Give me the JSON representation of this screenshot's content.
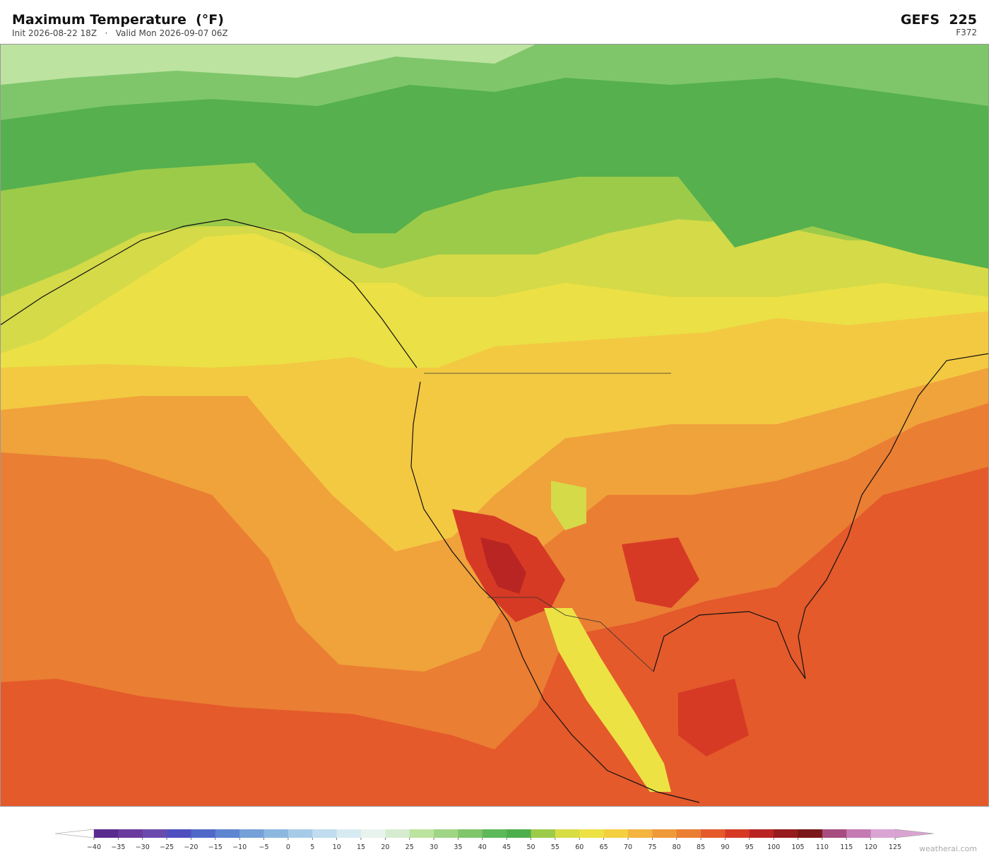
{
  "header": {
    "title": "Maximum Temperature  (°F)",
    "subtitle": "Init 2026-08-22 18Z   ·   Valid Mon 2026-09-07 06Z",
    "model": "GEFS  225",
    "forecast_hour": "F372"
  },
  "colorbar": {
    "ticks": [
      {
        "value": -40,
        "label": "−40"
      },
      {
        "value": -35,
        "label": "−35"
      },
      {
        "value": -30,
        "label": "−30"
      },
      {
        "value": -25,
        "label": "−25"
      },
      {
        "value": -20,
        "label": "−20"
      },
      {
        "value": -15,
        "label": "−15"
      },
      {
        "value": -10,
        "label": "−10"
      },
      {
        "value": -5,
        "label": "−5"
      },
      0,
      5,
      10,
      15,
      20,
      25,
      30,
      35,
      40,
      45,
      50,
      55,
      60,
      65,
      70,
      75,
      80,
      85,
      90,
      95,
      100,
      105,
      110,
      115,
      120,
      125
    ],
    "colors": [
      "#5b2a8f",
      "#6a3a9e",
      "#6b4aae",
      "#4f4fc0",
      "#5069c8",
      "#5d85d0",
      "#75a0d8",
      "#8cb8e0",
      "#a6cbe8",
      "#c0dcee",
      "#d8ebf2",
      "#e8f3ee",
      "#d5ecd0",
      "#bde3a0",
      "#9fd585",
      "#7fc66a",
      "#5db95a",
      "#4caf4c",
      "#9ccb4a",
      "#d8dc45",
      "#ede244",
      "#f4d041",
      "#f3b440",
      "#ef9a3a",
      "#ea7e33",
      "#e45a2b",
      "#d63a25",
      "#b82522",
      "#961c1e",
      "#7a1718",
      "#a64c7e",
      "#c47ab2",
      "#d9a4d2"
    ],
    "under_color": "#ffffff",
    "over_color": "#d9a4d2"
  },
  "watermark": "weatherai.com"
}
